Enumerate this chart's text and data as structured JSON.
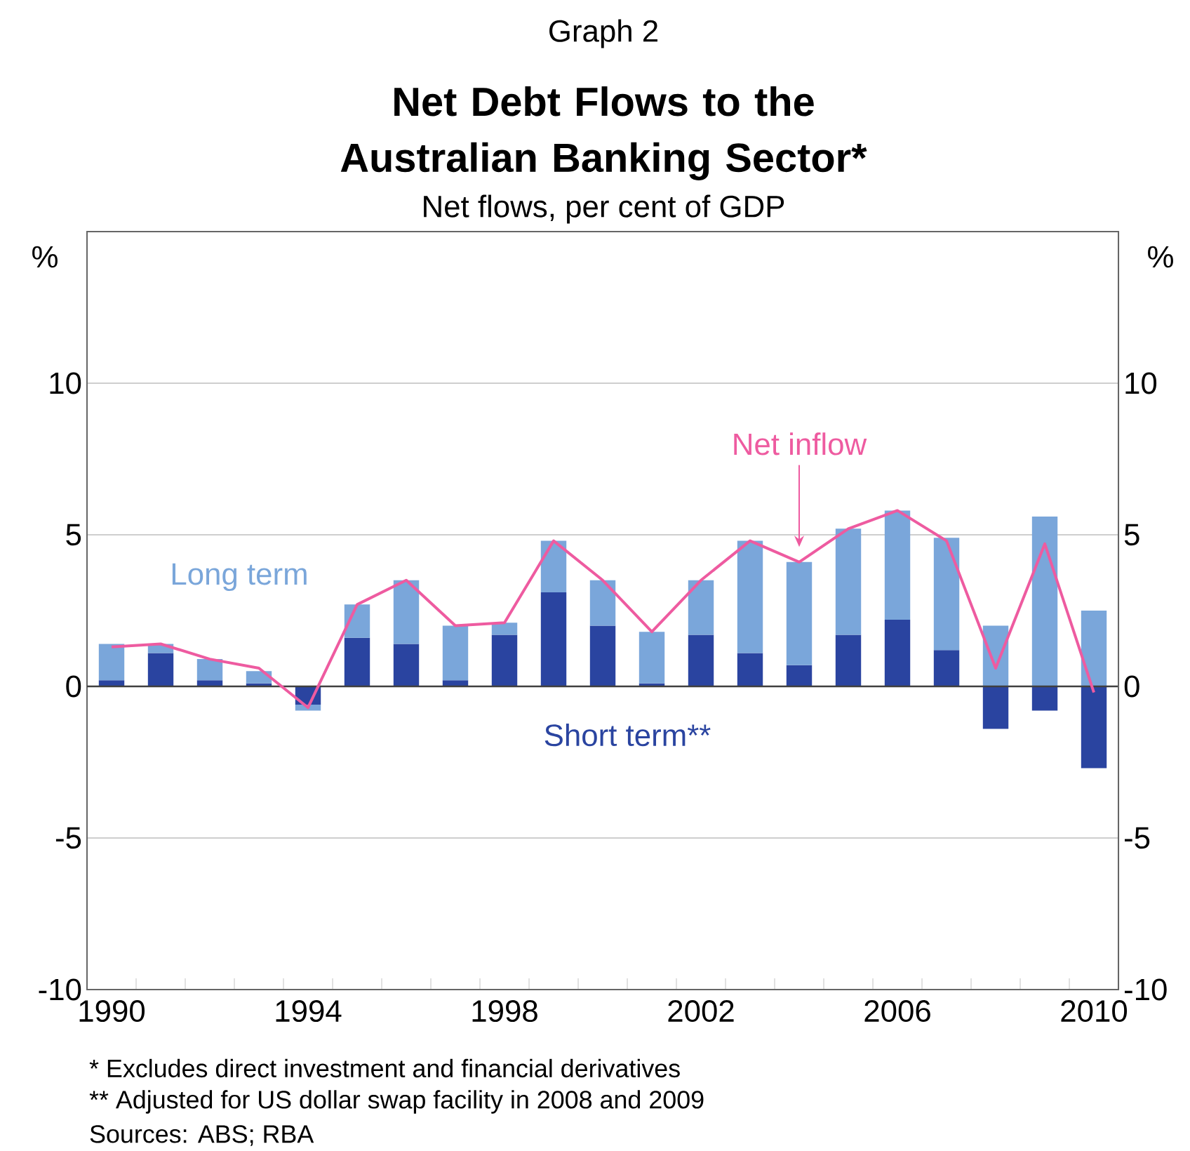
{
  "chart_data": {
    "type": "bar",
    "title": "Net Debt Flows to the Australian Banking Sector*",
    "subtitle": "Net flows, per cent of GDP",
    "ylabel": "%",
    "y2label": "%",
    "categories": [
      "1990",
      null,
      null,
      null,
      "1994",
      null,
      null,
      null,
      "1998",
      null,
      null,
      null,
      "2002",
      null,
      null,
      null,
      "2006",
      null,
      null,
      null,
      "2010"
    ],
    "stacked": true,
    "legend": false,
    "grid": "y",
    "marker": "none",
    "series": [
      {
        "name": "Short term**",
        "color": "#2a44a0",
        "values": [
          0.2,
          1.1,
          0.2,
          0.1,
          -0.6,
          1.6,
          1.4,
          0.2,
          1.7,
          3.1,
          2.0,
          0.1,
          1.7,
          1.1,
          0.7,
          1.7,
          2.2,
          1.2,
          -1.4,
          -0.8,
          -2.7
        ]
      },
      {
        "name": "Long term",
        "color": "#7aa6da",
        "values": [
          1.2,
          0.3,
          0.7,
          0.4,
          -0.2,
          1.1,
          2.1,
          1.8,
          0.4,
          1.7,
          1.5,
          1.7,
          1.8,
          3.7,
          3.4,
          3.5,
          3.6,
          3.7,
          2.0,
          5.6,
          2.5
        ]
      },
      {
        "name": "Net inflow",
        "type": "line",
        "color": "#ee5ba0",
        "line_style": "solid",
        "values": [
          1.3,
          1.4,
          0.9,
          0.6,
          -0.7,
          2.7,
          3.5,
          2.0,
          2.1,
          4.8,
          3.5,
          1.8,
          3.5,
          4.8,
          4.1,
          5.2,
          5.8,
          4.8,
          0.6,
          4.7,
          -0.2
        ]
      }
    ],
    "ylim": [
      -10,
      15
    ],
    "yticks": [
      -10,
      -5,
      0,
      5,
      10
    ],
    "y2lim": [
      -10,
      15
    ],
    "y2ticks": [
      -10,
      -5,
      0,
      5,
      10
    ],
    "annotations": [
      "Graph 2",
      "*    Excludes direct investment and financial derivatives",
      "**  Adjusted for US dollar swap facility in 2008 and 2009",
      "Sources: ABS; RBA"
    ]
  }
}
